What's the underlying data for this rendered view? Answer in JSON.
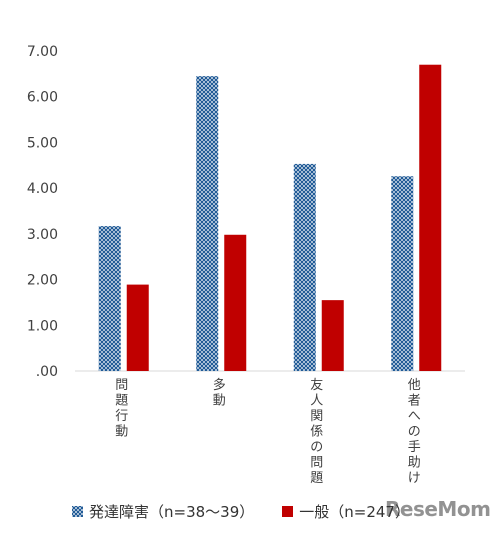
{
  "chart_data": {
    "type": "bar",
    "categories": [
      "問題行動",
      "多動",
      "友人関係の問題",
      "他者への手助け"
    ],
    "series": [
      {
        "name": "発達障害（n=38～39）",
        "values": [
          3.17,
          6.45,
          4.53,
          4.26
        ],
        "color": "#1f5a96",
        "pattern": "crosshatch"
      },
      {
        "name": "一般（n=247）",
        "values": [
          1.89,
          2.98,
          1.55,
          6.7
        ],
        "color": "#c00000",
        "pattern": "solid"
      }
    ],
    "ylim": [
      0,
      7
    ],
    "yticks": [
      ".00",
      "1.00",
      "2.00",
      "3.00",
      "4.00",
      "5.00",
      "6.00",
      "7.00"
    ],
    "grid": false,
    "legend_position": "bottom",
    "xlabel": "",
    "ylabel": "",
    "title": ""
  },
  "legend": {
    "series1": "発達障害（n=38～39）",
    "series2": "一般（n=247）"
  },
  "watermark": "ReseMom"
}
